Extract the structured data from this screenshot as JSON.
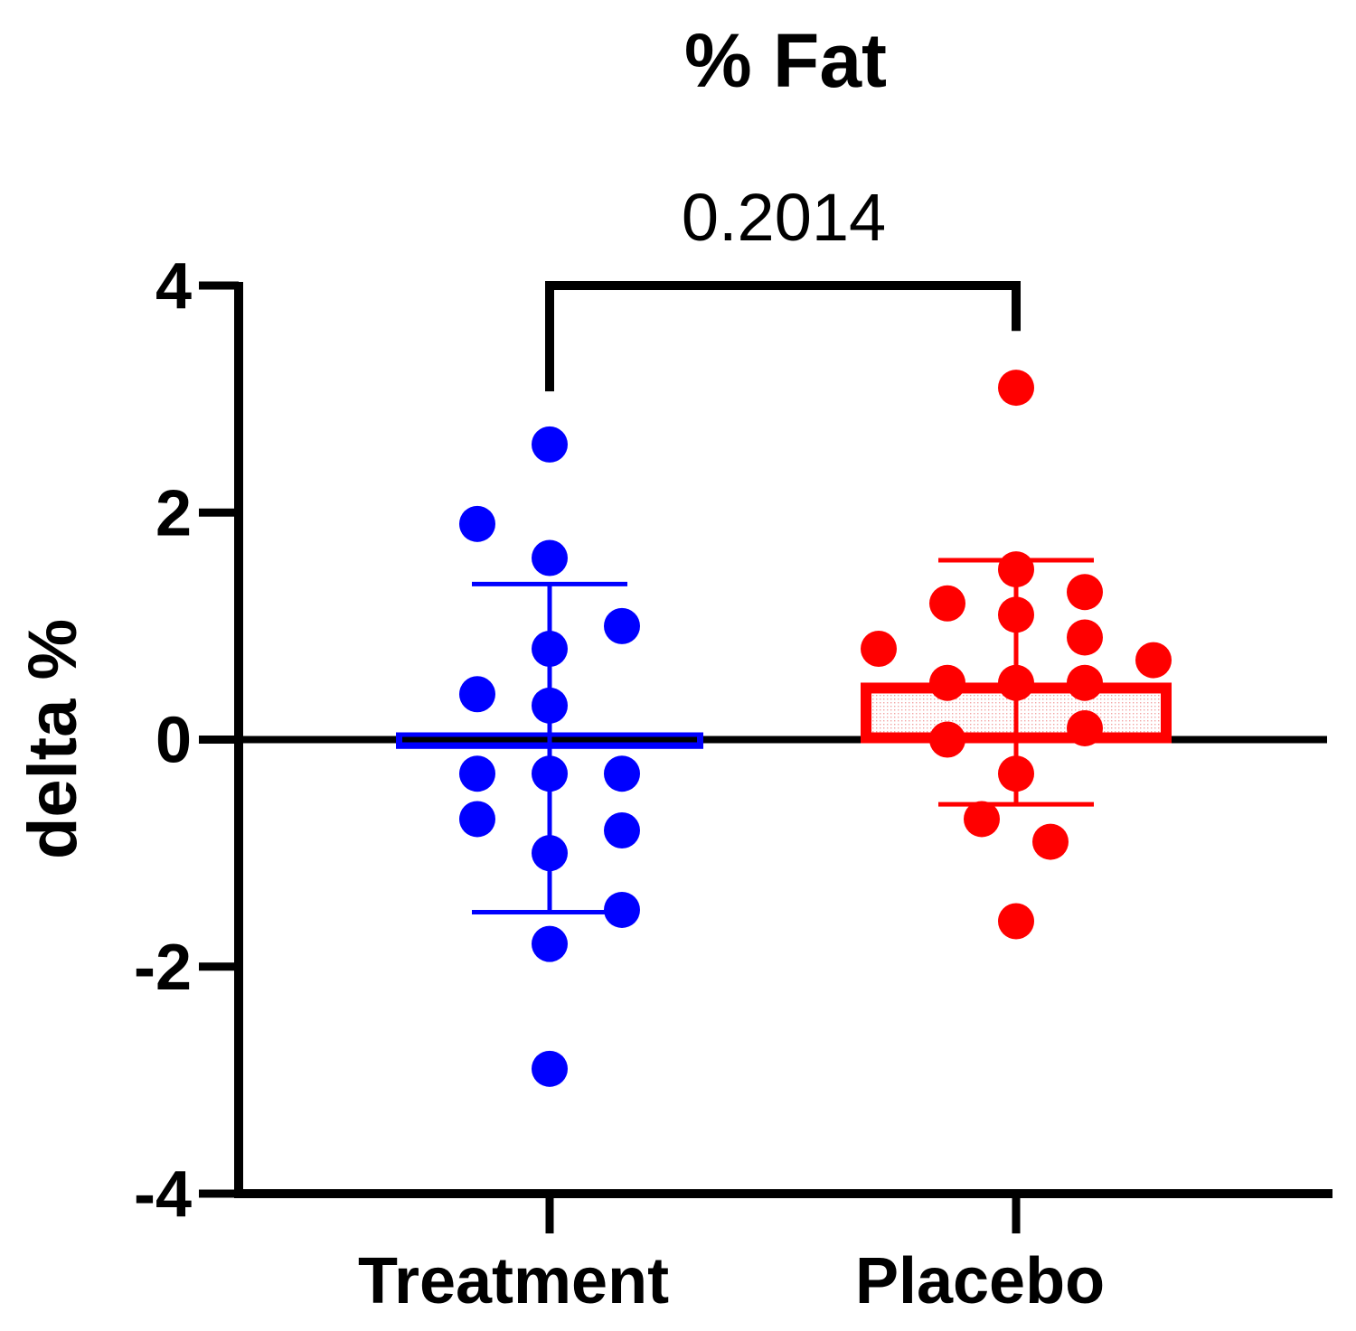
{
  "chart_data": {
    "type": "scatter",
    "title": "% Fat",
    "xlabel": "",
    "ylabel": "delta %",
    "ylim": [
      -4,
      4
    ],
    "yticks": [
      4,
      2,
      0,
      -2,
      -4
    ],
    "categories": [
      "Treatment",
      "Placebo"
    ],
    "series": [
      {
        "name": "Treatment",
        "color": "#0000FF",
        "mean": -0.05,
        "sd_upper": 1.37,
        "sd_lower": -1.52,
        "points": [
          {
            "offset": 0,
            "y": 2.6
          },
          {
            "offset": -1,
            "y": 1.9
          },
          {
            "offset": 0,
            "y": 1.6
          },
          {
            "offset": 1,
            "y": 1.0
          },
          {
            "offset": 0,
            "y": 0.8
          },
          {
            "offset": -1,
            "y": 0.4
          },
          {
            "offset": 0,
            "y": 0.3
          },
          {
            "offset": -1,
            "y": -0.3
          },
          {
            "offset": 0,
            "y": -0.3
          },
          {
            "offset": 1,
            "y": -0.3
          },
          {
            "offset": -1,
            "y": -0.7
          },
          {
            "offset": 1,
            "y": -0.8
          },
          {
            "offset": 0,
            "y": -1.0
          },
          {
            "offset": 1,
            "y": -1.5
          },
          {
            "offset": 0,
            "y": -1.8
          },
          {
            "offset": 0,
            "y": -2.9
          }
        ]
      },
      {
        "name": "Placebo",
        "color": "#FF0000",
        "mean": 0.47,
        "sd_upper": 1.58,
        "sd_lower": -0.57,
        "points": [
          {
            "offset": 0,
            "y": 3.1
          },
          {
            "offset": 0,
            "y": 1.5
          },
          {
            "offset": 1,
            "y": 1.3
          },
          {
            "offset": -1,
            "y": 1.2
          },
          {
            "offset": 0,
            "y": 1.1
          },
          {
            "offset": 1,
            "y": 0.9
          },
          {
            "offset": -2,
            "y": 0.8
          },
          {
            "offset": 2,
            "y": 0.7
          },
          {
            "offset": -1,
            "y": 0.5
          },
          {
            "offset": 0,
            "y": 0.5
          },
          {
            "offset": 1,
            "y": 0.5
          },
          {
            "offset": 1,
            "y": 0.1
          },
          {
            "offset": -1,
            "y": 0.0
          },
          {
            "offset": 0,
            "y": -0.3
          },
          {
            "offset": -0.5,
            "y": -0.7
          },
          {
            "offset": 0.5,
            "y": -0.9
          },
          {
            "offset": 0,
            "y": -1.6
          }
        ]
      }
    ],
    "annotation": {
      "label": "0.2014",
      "between": [
        "Treatment",
        "Placebo"
      ]
    }
  }
}
